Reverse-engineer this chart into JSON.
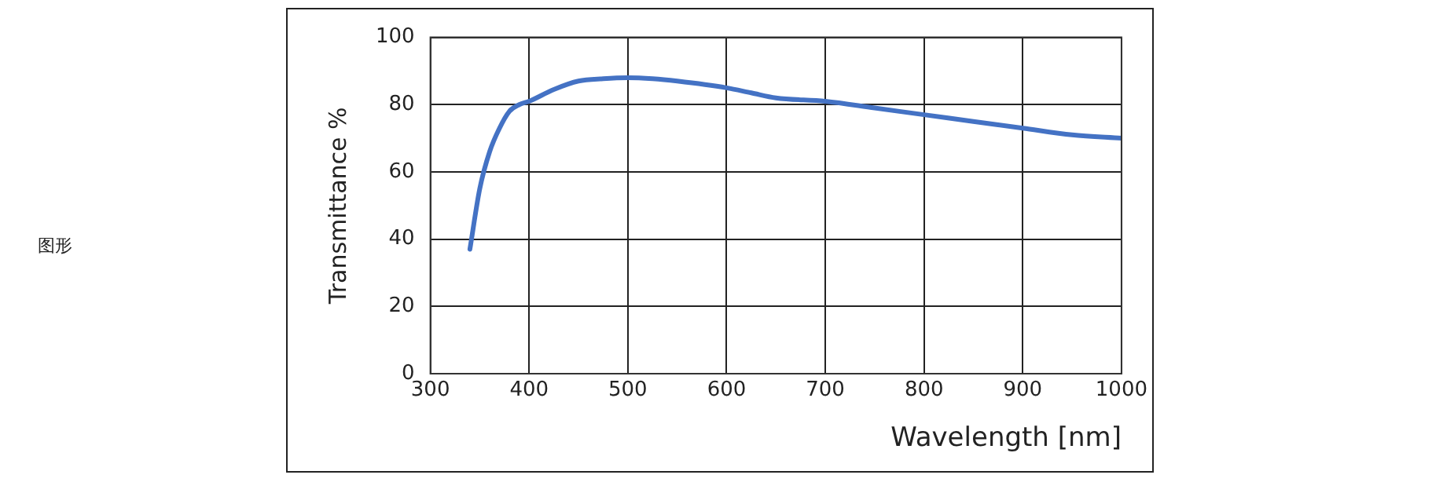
{
  "chart_data": {
    "type": "line",
    "xlabel": "Wavelength [nm]",
    "ylabel": "Transmittance %",
    "annotations": [
      "图形"
    ],
    "x": [
      340,
      350,
      360,
      370,
      380,
      390,
      400,
      425,
      450,
      475,
      500,
      525,
      550,
      600,
      625,
      650,
      700,
      750,
      800,
      850,
      900,
      950,
      1000
    ],
    "series": [
      {
        "color": "#4472c4",
        "values": [
          37,
          55,
          66,
          73,
          78,
          80,
          81,
          84.5,
          87,
          87.7,
          88,
          87.7,
          87,
          85,
          83.5,
          82,
          81,
          79,
          77,
          75,
          73,
          71,
          70
        ]
      }
    ],
    "xlim": [
      300,
      1000
    ],
    "xticks": [
      300,
      400,
      500,
      600,
      700,
      800,
      900,
      1000
    ],
    "ylim": [
      0,
      100
    ],
    "yticks": [
      0,
      20,
      40,
      60,
      80,
      100
    ],
    "grid": true,
    "legend": false,
    "marker": "none",
    "line_style": "solid"
  }
}
